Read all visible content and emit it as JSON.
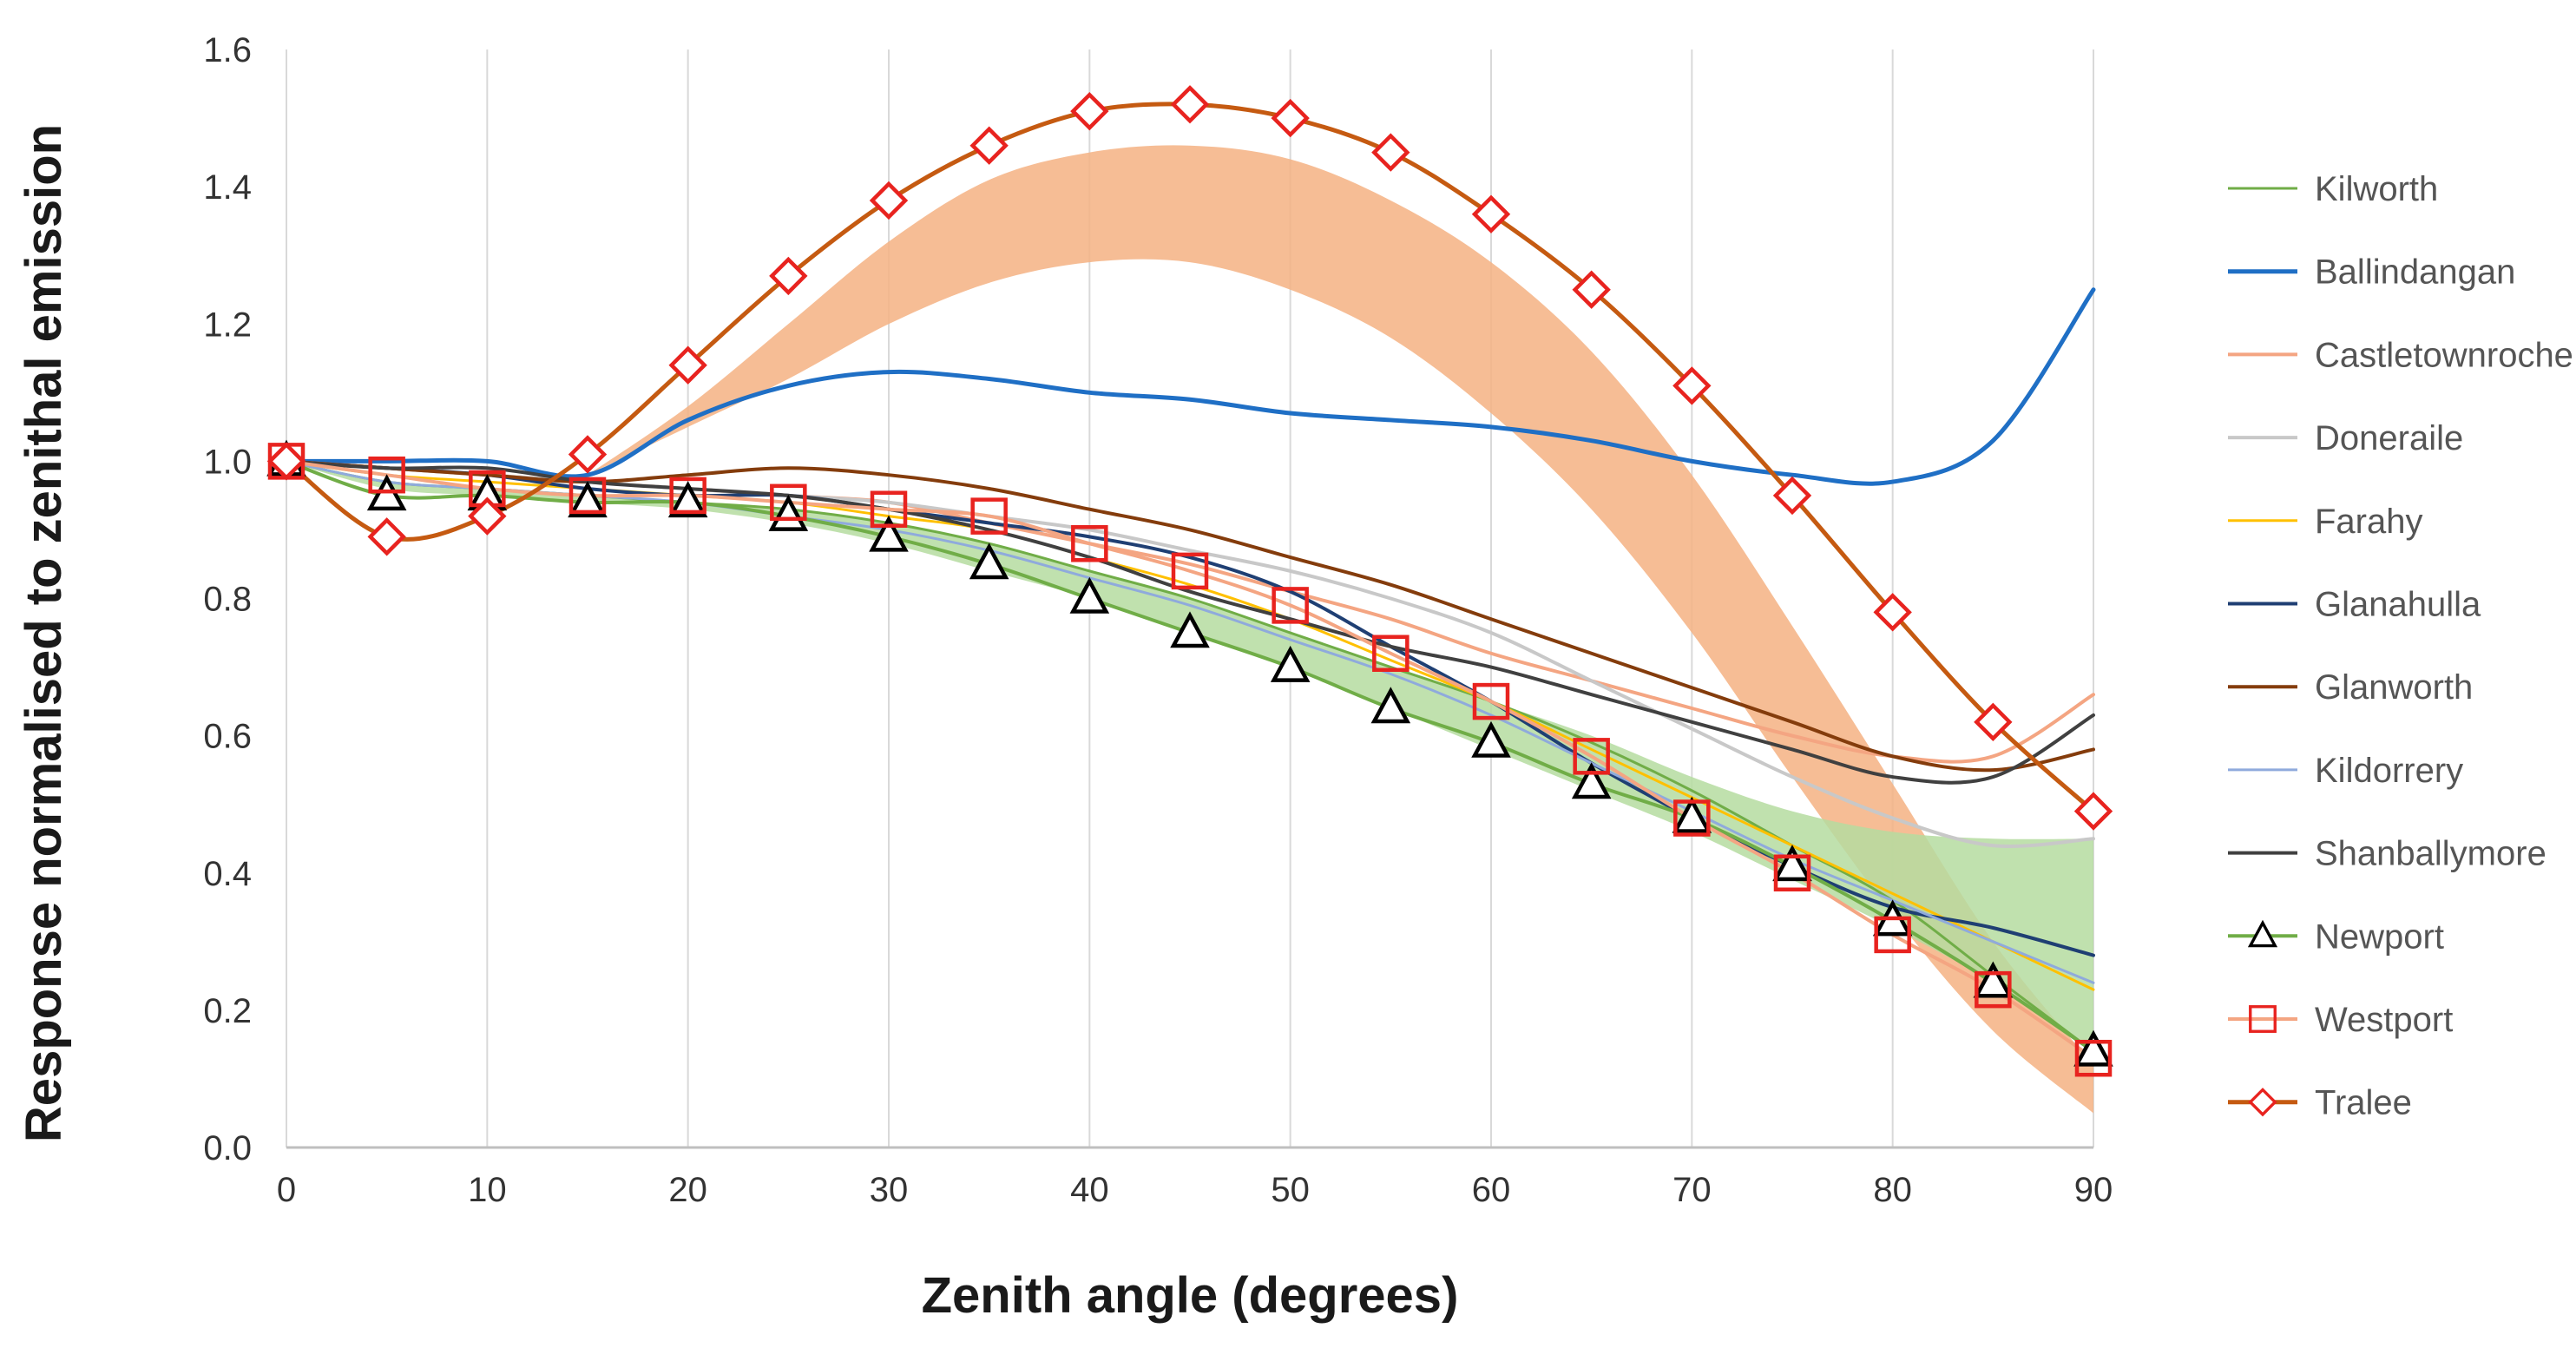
{
  "chart_data": {
    "type": "line",
    "title": "",
    "xlabel": "Zenith angle (degrees)",
    "ylabel": "Response normalised to zenithal emission",
    "xlim": [
      0,
      90
    ],
    "ylim": [
      0,
      1.6
    ],
    "xticks": [
      0,
      10,
      20,
      30,
      40,
      50,
      60,
      70,
      80,
      90
    ],
    "yticks": [
      0.0,
      0.2,
      0.4,
      0.6,
      0.8,
      1.0,
      1.2,
      1.4,
      1.6
    ],
    "ytick_labels": [
      "0.0",
      "0.2",
      "0.4",
      "0.6",
      "0.8",
      "1.0",
      "1.2",
      "1.4",
      "1.6"
    ],
    "grid": "vertical",
    "legend_position": "right",
    "x": [
      0,
      5,
      10,
      15,
      20,
      25,
      30,
      35,
      40,
      45,
      50,
      55,
      60,
      65,
      70,
      75,
      80,
      85,
      90
    ],
    "bands": [
      {
        "name": "orange-band",
        "color": "#f4b183",
        "lower": [
          null,
          null,
          null,
          0.98,
          1.05,
          1.12,
          1.2,
          1.26,
          1.29,
          1.29,
          1.25,
          1.18,
          1.07,
          0.93,
          0.75,
          0.54,
          0.34,
          0.17,
          0.05
        ],
        "upper": [
          null,
          null,
          null,
          0.98,
          1.08,
          1.2,
          1.32,
          1.41,
          1.45,
          1.46,
          1.44,
          1.38,
          1.29,
          1.16,
          0.98,
          0.76,
          0.53,
          0.3,
          0.12
        ]
      },
      {
        "name": "green-band",
        "color": "#b5dca0",
        "lower": [
          1.0,
          0.96,
          0.95,
          0.94,
          0.93,
          0.91,
          0.88,
          0.84,
          0.8,
          0.75,
          0.7,
          0.64,
          0.58,
          0.52,
          0.46,
          0.39,
          0.32,
          0.24,
          0.14
        ],
        "upper": [
          1.0,
          0.97,
          0.96,
          0.95,
          0.94,
          0.93,
          0.91,
          0.88,
          0.84,
          0.8,
          0.75,
          0.7,
          0.65,
          0.6,
          0.54,
          0.49,
          0.46,
          0.45,
          0.45
        ]
      }
    ],
    "series": [
      {
        "name": "Kilworth",
        "color": "#70ad47",
        "width": 3,
        "marker": null,
        "values": [
          1.0,
          0.97,
          0.96,
          0.95,
          0.94,
          0.93,
          0.91,
          0.88,
          0.84,
          0.8,
          0.75,
          0.7,
          0.65,
          0.59,
          0.52,
          0.44,
          0.36,
          0.25,
          0.14
        ]
      },
      {
        "name": "Ballindangan",
        "color": "#1f6fc5",
        "width": 5,
        "marker": null,
        "values": [
          1.0,
          1.0,
          1.0,
          0.98,
          1.06,
          1.11,
          1.13,
          1.12,
          1.1,
          1.09,
          1.07,
          1.06,
          1.05,
          1.03,
          1.0,
          0.98,
          0.97,
          1.03,
          1.25
        ]
      },
      {
        "name": "Castletownroche",
        "color": "#f4a582",
        "width": 4,
        "marker": null,
        "values": [
          1.0,
          0.99,
          0.98,
          0.97,
          0.96,
          0.95,
          0.94,
          0.91,
          0.88,
          0.85,
          0.81,
          0.77,
          0.72,
          0.68,
          0.64,
          0.6,
          0.57,
          0.57,
          0.66
        ]
      },
      {
        "name": "Doneraile",
        "color": "#c8c8c8",
        "width": 4,
        "marker": null,
        "values": [
          1.0,
          0.99,
          0.98,
          0.97,
          0.96,
          0.95,
          0.94,
          0.92,
          0.9,
          0.87,
          0.84,
          0.8,
          0.75,
          0.68,
          0.61,
          0.54,
          0.48,
          0.44,
          0.45
        ]
      },
      {
        "name": "Farahy",
        "color": "#ffc000",
        "width": 3,
        "marker": null,
        "values": [
          1.0,
          0.98,
          0.97,
          0.96,
          0.95,
          0.94,
          0.92,
          0.9,
          0.86,
          0.82,
          0.77,
          0.71,
          0.65,
          0.58,
          0.51,
          0.44,
          0.37,
          0.3,
          0.23
        ]
      },
      {
        "name": "Glanahulla",
        "color": "#1f3f73",
        "width": 4,
        "marker": null,
        "values": [
          1.0,
          0.99,
          0.98,
          0.96,
          0.95,
          0.95,
          0.93,
          0.91,
          0.89,
          0.86,
          0.81,
          0.73,
          0.65,
          0.56,
          0.48,
          0.41,
          0.35,
          0.32,
          0.28
        ]
      },
      {
        "name": "Glanworth",
        "color": "#843c0c",
        "width": 4,
        "marker": null,
        "values": [
          1.0,
          0.99,
          0.98,
          0.97,
          0.98,
          0.99,
          0.98,
          0.96,
          0.93,
          0.9,
          0.86,
          0.82,
          0.77,
          0.72,
          0.67,
          0.62,
          0.57,
          0.55,
          0.58
        ]
      },
      {
        "name": "Kildorrery",
        "color": "#8faadc",
        "width": 3,
        "marker": null,
        "values": [
          1.0,
          0.97,
          0.96,
          0.95,
          0.94,
          0.92,
          0.9,
          0.87,
          0.83,
          0.79,
          0.74,
          0.69,
          0.63,
          0.56,
          0.49,
          0.42,
          0.36,
          0.3,
          0.24
        ]
      },
      {
        "name": "Shanballymore",
        "color": "#404040",
        "width": 4,
        "marker": null,
        "values": [
          1.0,
          0.99,
          0.99,
          0.97,
          0.96,
          0.95,
          0.93,
          0.9,
          0.86,
          0.81,
          0.77,
          0.73,
          0.7,
          0.66,
          0.62,
          0.58,
          0.54,
          0.54,
          0.63
        ]
      },
      {
        "name": "Newport",
        "color": "#70ad47",
        "width": 4,
        "marker": "triangle",
        "values": [
          1.0,
          0.95,
          0.95,
          0.94,
          0.94,
          0.92,
          0.89,
          0.85,
          0.8,
          0.75,
          0.7,
          0.64,
          0.59,
          0.53,
          0.48,
          0.41,
          0.33,
          0.24,
          0.14
        ]
      },
      {
        "name": "Westport",
        "color": "#f4a582",
        "width": 4,
        "marker": "square",
        "values": [
          1.0,
          0.98,
          0.96,
          0.95,
          0.95,
          0.94,
          0.93,
          0.92,
          0.88,
          0.84,
          0.79,
          0.72,
          0.65,
          0.57,
          0.48,
          0.4,
          0.31,
          0.23,
          0.13
        ]
      },
      {
        "name": "Tralee",
        "color": "#c55a11",
        "width": 5,
        "marker": "diamond",
        "values": [
          1.0,
          0.89,
          0.92,
          1.01,
          1.14,
          1.27,
          1.38,
          1.46,
          1.51,
          1.52,
          1.5,
          1.45,
          1.36,
          1.25,
          1.11,
          0.95,
          0.78,
          0.62,
          0.49
        ]
      }
    ]
  }
}
